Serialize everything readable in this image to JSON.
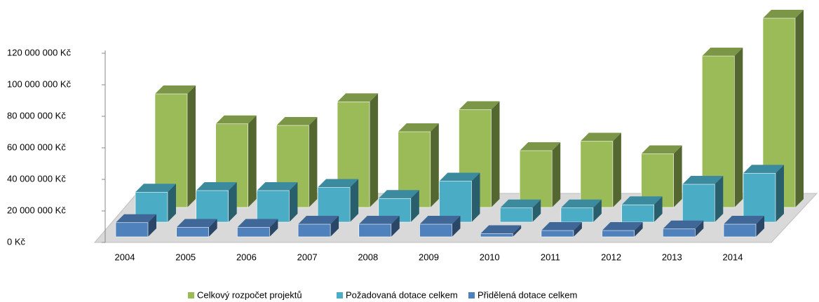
{
  "chart_data": {
    "type": "bar3d",
    "categories": [
      "2004",
      "2005",
      "2006",
      "2007",
      "2008",
      "2009",
      "2010",
      "2011",
      "2012",
      "2013",
      "2014"
    ],
    "series": [
      {
        "name": "Celkový rozpočet projektů",
        "color": "#9bbb59",
        "values": [
          72000000,
          53000000,
          52000000,
          67000000,
          48000000,
          62000000,
          36000000,
          42000000,
          34000000,
          96000000,
          120000000
        ]
      },
      {
        "name": "Požadovaná dotace celkem",
        "color": "#4bacc6",
        "values": [
          19000000,
          20000000,
          20000000,
          22000000,
          15000000,
          26000000,
          9000000,
          9000000,
          11000000,
          24000000,
          31000000
        ]
      },
      {
        "name": "Přidělená dotace celkem",
        "color": "#4f81bd",
        "values": [
          9000000,
          6000000,
          6000000,
          8000000,
          8000000,
          8000000,
          2000000,
          4000000,
          4000000,
          5000000,
          8000000
        ]
      }
    ],
    "ylim": [
      0,
      120000000
    ],
    "yticks": [
      {
        "value": 0,
        "label": "0 Kč"
      },
      {
        "value": 20000000,
        "label": "20 000 000 Kč"
      },
      {
        "value": 40000000,
        "label": "40 000 000 Kč"
      },
      {
        "value": 60000000,
        "label": "60 000 000 Kč"
      },
      {
        "value": 80000000,
        "label": "80 000 000 Kč"
      },
      {
        "value": 100000000,
        "label": "100 000 000 Kč"
      },
      {
        "value": 120000000,
        "label": "120 000 000 Kč"
      }
    ],
    "legend": "bottom"
  }
}
